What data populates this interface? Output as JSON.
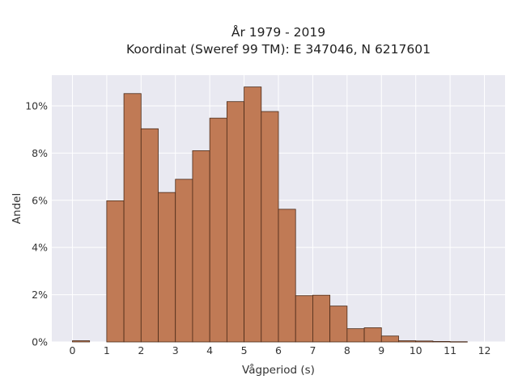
{
  "chart_data": {
    "type": "bar",
    "title_line1": "År 1979 - 2019",
    "title_line2": "Koordinat (Sweref 99 TM): E 347046, N 6217601",
    "xlabel": "Vågperiod (s)",
    "ylabel": "Andel",
    "xlim": [
      -0.6,
      12.6
    ],
    "ylim": [
      0,
      11.3
    ],
    "bin_width": 0.5,
    "x_ticks": [
      0,
      1,
      2,
      3,
      4,
      5,
      6,
      7,
      8,
      9,
      10,
      11,
      12
    ],
    "x_tick_labels": [
      "0",
      "1",
      "2",
      "3",
      "4",
      "5",
      "6",
      "7",
      "8",
      "9",
      "10",
      "11",
      "12"
    ],
    "y_ticks": [
      0,
      2,
      4,
      6,
      8,
      10
    ],
    "y_tick_labels": [
      "0%",
      "2%",
      "4%",
      "6%",
      "8%",
      "10%"
    ],
    "grid": true,
    "bin_starts": [
      0.0,
      1.0,
      1.5,
      2.0,
      2.5,
      3.0,
      3.5,
      4.0,
      4.5,
      5.0,
      5.5,
      6.0,
      6.5,
      7.0,
      7.5,
      8.0,
      8.5,
      9.0,
      9.5,
      10.0,
      10.5,
      11.0
    ],
    "values": [
      0.05,
      5.98,
      10.52,
      9.03,
      6.33,
      6.89,
      8.1,
      9.48,
      10.18,
      10.8,
      9.76,
      5.62,
      1.96,
      1.98,
      1.52,
      0.56,
      0.6,
      0.25,
      0.05,
      0.04,
      0.02,
      0.01
    ],
    "colors": {
      "bar_fill": "#c07a55",
      "bar_edge": "#4a2a18",
      "plot_background": "#e9e9f1",
      "grid": "#ffffff"
    }
  }
}
